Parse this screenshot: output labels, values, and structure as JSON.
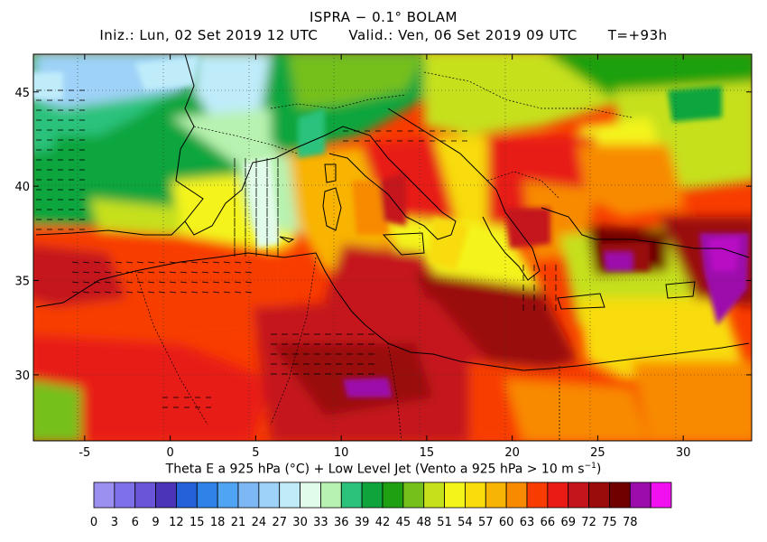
{
  "header": {
    "title": "ISPRA − 0.1° BOLAM",
    "init": "Iniz.: Lun, 02 Set 2019  12 UTC",
    "valid": "Valid.: Ven, 06 Set 2019  09 UTC",
    "lead": "T=+93h"
  },
  "map": {
    "lon_range": [
      -8,
      34
    ],
    "lat_range": [
      26.5,
      47
    ],
    "lon_ticks": [
      "-5",
      "0",
      "5",
      "10",
      "15",
      "20",
      "25",
      "30"
    ],
    "lon_tick_values": [
      -5,
      0,
      5,
      10,
      15,
      20,
      25,
      30
    ],
    "lat_ticks": [
      "30",
      "35",
      "40",
      "45"
    ],
    "lat_tick_values": [
      30,
      35,
      40,
      45
    ]
  },
  "caption": {
    "main": "Theta E a 925 hPa (°C) + Low Level Jet (Vento a 925 hPa > 10 m s",
    "exp": "−1",
    "close": ")"
  },
  "legend": {
    "labels": [
      "0",
      "3",
      "6",
      "9",
      "12",
      "15",
      "18",
      "21",
      "24",
      "27",
      "30",
      "33",
      "36",
      "39",
      "42",
      "45",
      "48",
      "51",
      "54",
      "57",
      "60",
      "63",
      "66",
      "69",
      "72",
      "75",
      "78"
    ],
    "colors": [
      "#9b8ff0",
      "#7e70e8",
      "#6a55d8",
      "#4b34b8",
      "#2561d8",
      "#2e82e8",
      "#50a4f4",
      "#7eb8f4",
      "#9fd2f8",
      "#c0ecfa",
      "#e2fcea",
      "#b8f2b0",
      "#2cc27c",
      "#10a53c",
      "#1ea010",
      "#76c01c",
      "#c6e01a",
      "#f4f41a",
      "#f8dc0c",
      "#f8b404",
      "#f88a00",
      "#f83c00",
      "#e81c14",
      "#c4141c",
      "#9a0c0c",
      "#700000",
      "#9c0cac",
      "#f010f0"
    ]
  }
}
